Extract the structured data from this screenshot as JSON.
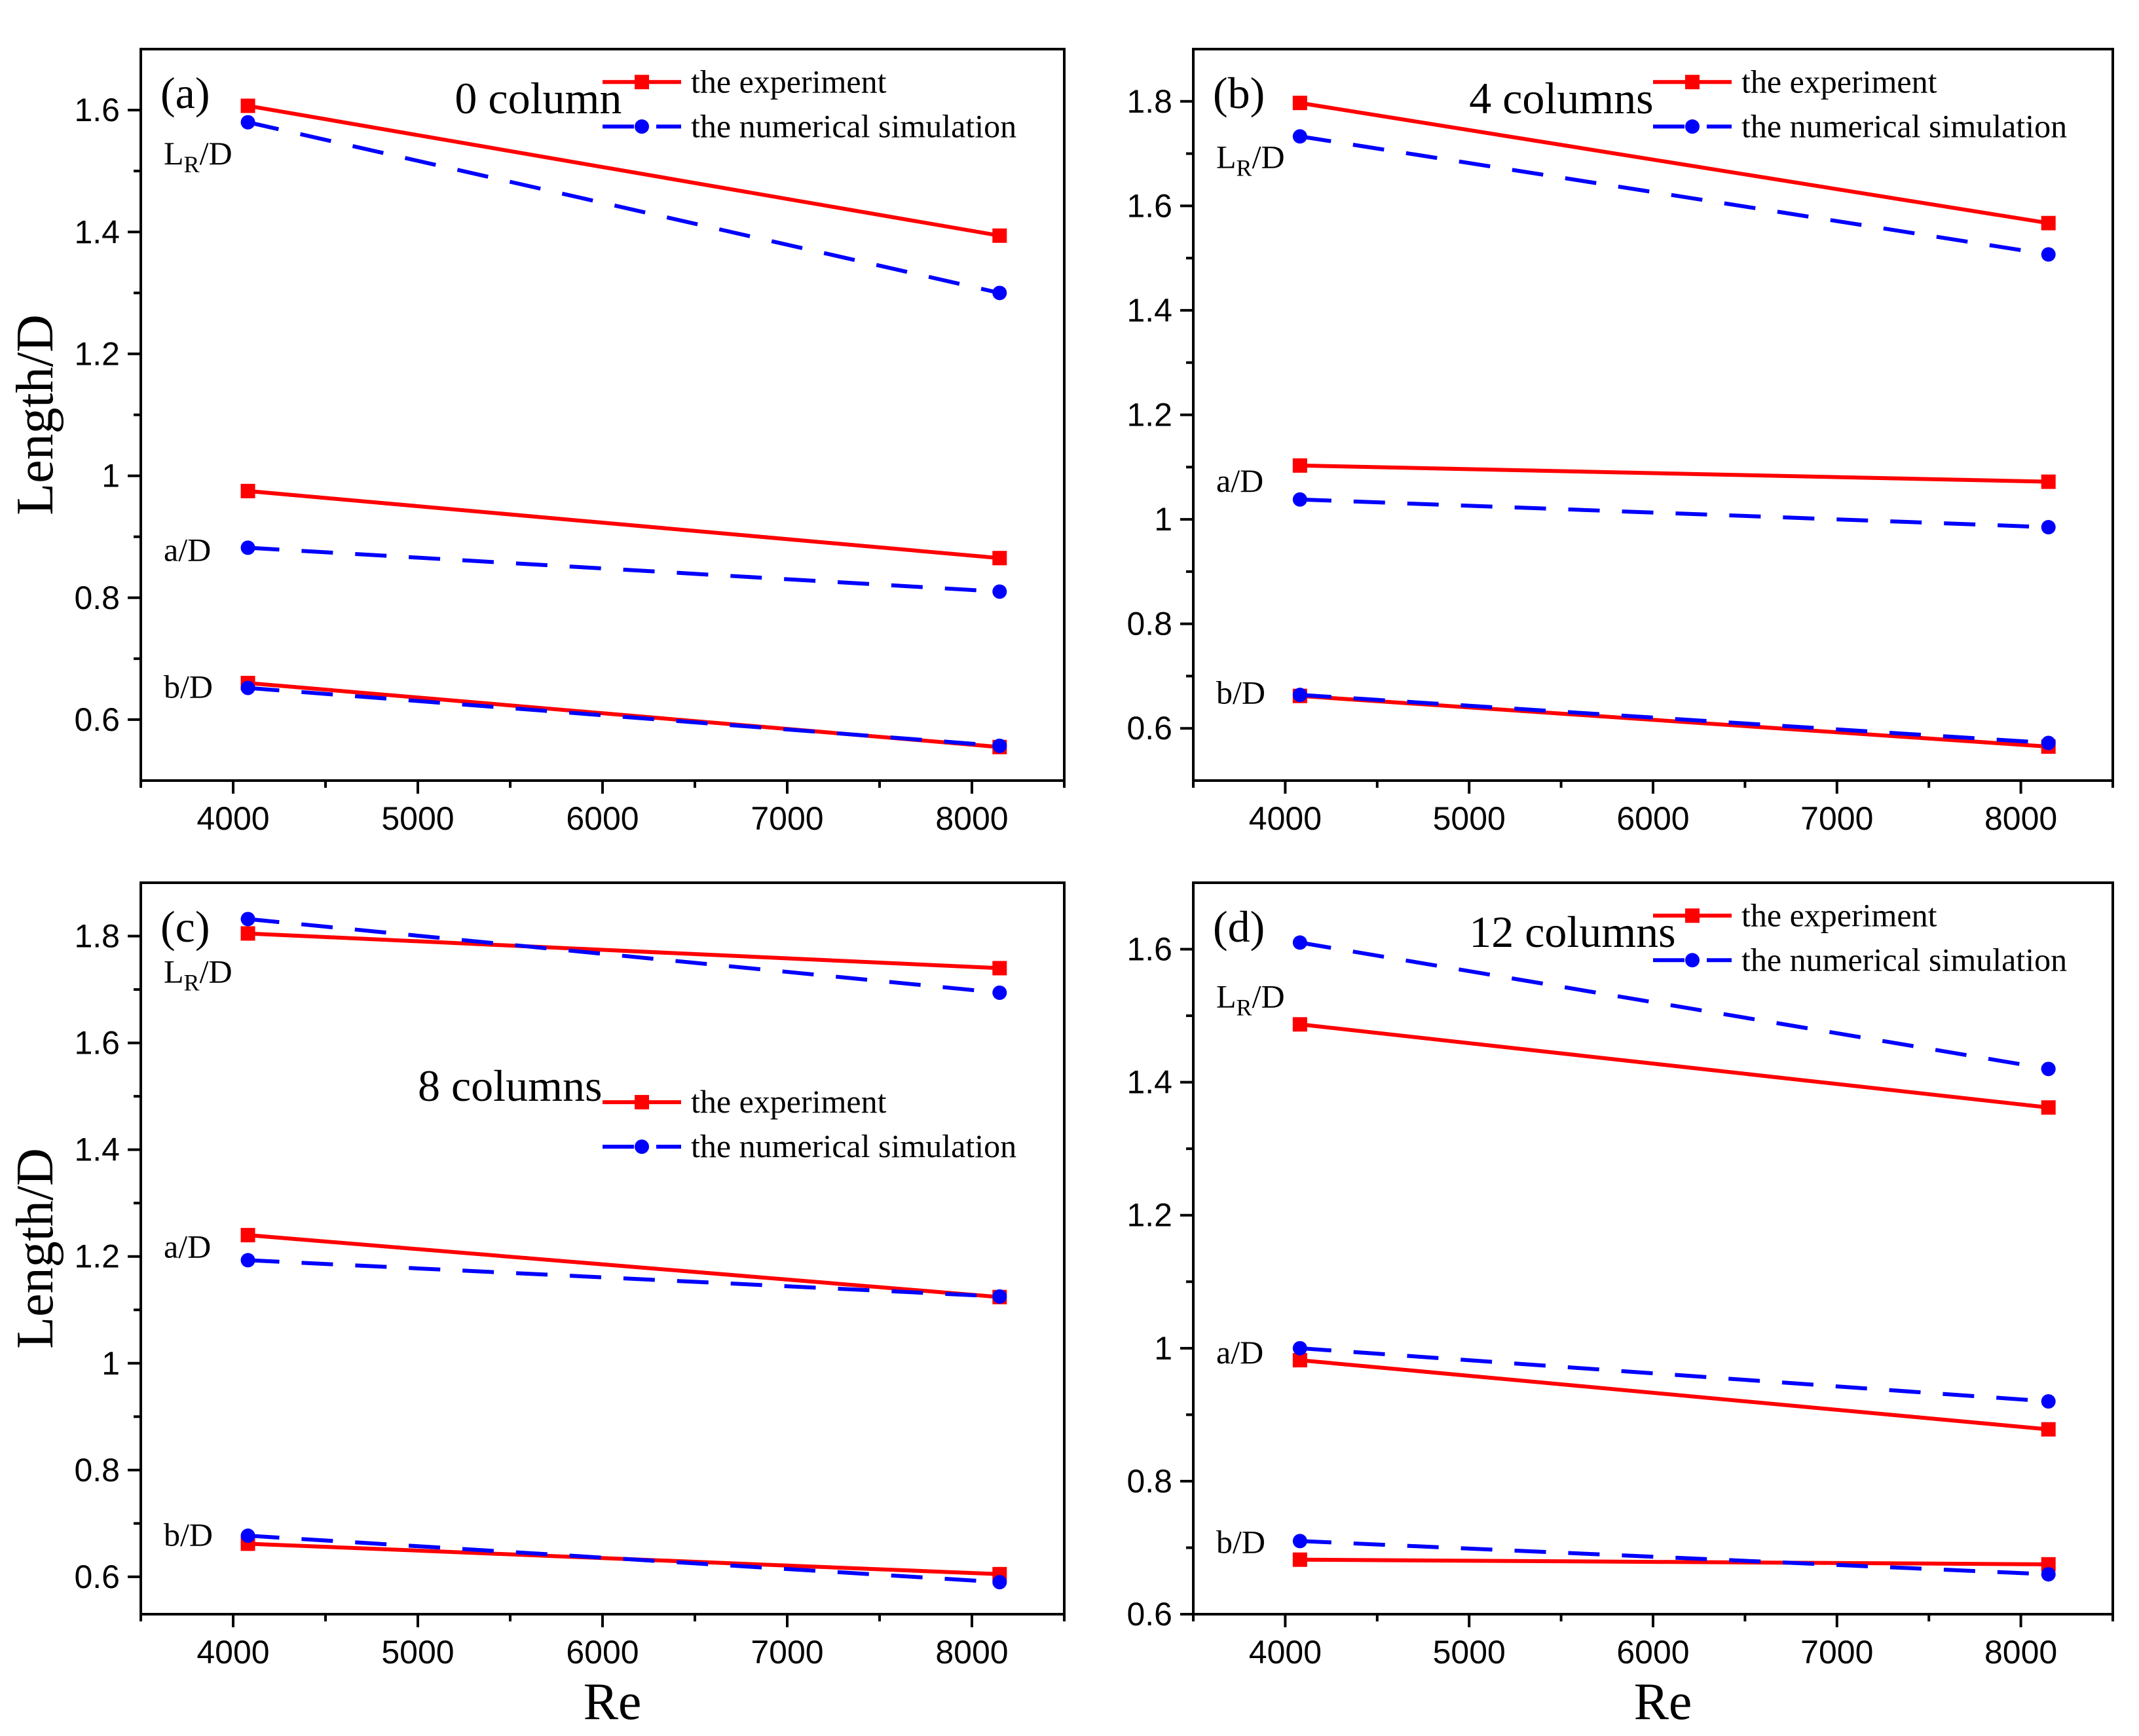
{
  "chart_data": [
    {
      "type": "line",
      "panel_label": "(a)",
      "title": "0 column",
      "xlabel": "Re",
      "ylabel": "Length/D",
      "xlim": [
        3500,
        8500
      ],
      "ylim": [
        0.5,
        1.7
      ],
      "xticks": [
        4000,
        5000,
        6000,
        7000,
        8000
      ],
      "yticks": [
        0.6,
        0.8,
        1,
        1.2,
        1.4,
        1.6
      ],
      "ytick_labels": [
        "0.6",
        "0.8",
        "1",
        "1.2",
        "1.4",
        "1.6"
      ],
      "x": [
        4080,
        8150
      ],
      "legend": [
        "the experiment",
        "the numerical simulation"
      ],
      "legend_pos": "top-right",
      "series": [
        {
          "name": "the experiment",
          "group": "LR/D",
          "values": [
            1.607,
            1.394
          ]
        },
        {
          "name": "the numerical simulation",
          "group": "LR/D",
          "values": [
            1.58,
            1.3
          ]
        },
        {
          "name": "the experiment",
          "group": "a/D",
          "values": [
            0.975,
            0.865
          ]
        },
        {
          "name": "the numerical simulation",
          "group": "a/D",
          "values": [
            0.882,
            0.81
          ]
        },
        {
          "name": "the experiment",
          "group": "b/D",
          "values": [
            0.66,
            0.555
          ]
        },
        {
          "name": "the numerical simulation",
          "group": "b/D",
          "values": [
            0.652,
            0.557
          ]
        }
      ],
      "annotations": [
        {
          "label": "L",
          "sub": "R",
          "rest": "/D",
          "y": 1.53
        },
        {
          "label": "a/D",
          "sub": "",
          "rest": "",
          "y": 0.88
        },
        {
          "label": "b/D",
          "sub": "",
          "rest": "",
          "y": 0.655
        }
      ]
    },
    {
      "type": "line",
      "panel_label": "(b)",
      "title": "4 columns",
      "xlabel": "Re",
      "ylabel": "Length/D",
      "xlim": [
        3500,
        8500
      ],
      "ylim": [
        0.5,
        1.9
      ],
      "xticks": [
        4000,
        5000,
        6000,
        7000,
        8000
      ],
      "yticks": [
        0.6,
        0.8,
        1,
        1.2,
        1.4,
        1.6,
        1.8
      ],
      "ytick_labels": [
        "0.6",
        "0.8",
        "1",
        "1.2",
        "1.4",
        "1.6",
        "1.8"
      ],
      "x": [
        4080,
        8150
      ],
      "legend": [
        "the experiment",
        "the numerical simulation"
      ],
      "legend_pos": "top-right",
      "series": [
        {
          "name": "the experiment",
          "group": "LR/D",
          "values": [
            1.797,
            1.567
          ]
        },
        {
          "name": "the numerical simulation",
          "group": "LR/D",
          "values": [
            1.733,
            1.507
          ]
        },
        {
          "name": "the experiment",
          "group": "a/D",
          "values": [
            1.103,
            1.072
          ]
        },
        {
          "name": "the numerical simulation",
          "group": "a/D",
          "values": [
            1.038,
            0.985
          ]
        },
        {
          "name": "the experiment",
          "group": "b/D",
          "values": [
            0.662,
            0.565
          ]
        },
        {
          "name": "the numerical simulation",
          "group": "b/D",
          "values": [
            0.664,
            0.572
          ]
        }
      ],
      "annotations": [
        {
          "label": "L",
          "sub": "R",
          "rest": "/D",
          "y": 1.695
        },
        {
          "label": "a/D",
          "sub": "",
          "rest": "",
          "y": 1.075
        },
        {
          "label": "b/D",
          "sub": "",
          "rest": "",
          "y": 0.67
        }
      ]
    },
    {
      "type": "line",
      "panel_label": "(c)",
      "title": "8 columns",
      "xlabel": "Re",
      "ylabel": "Length/D",
      "xlim": [
        3500,
        8500
      ],
      "ylim": [
        0.53,
        1.9
      ],
      "xticks": [
        4000,
        5000,
        6000,
        7000,
        8000
      ],
      "yticks": [
        0.6,
        0.8,
        1,
        1.2,
        1.4,
        1.6,
        1.8
      ],
      "ytick_labels": [
        "0.6",
        "0.8",
        "1",
        "1.2",
        "1.4",
        "1.6",
        "1.8"
      ],
      "x": [
        4080,
        8150
      ],
      "legend": [
        "the experiment",
        "the numerical simulation"
      ],
      "legend_pos": "center-right",
      "series": [
        {
          "name": "the experiment",
          "group": "LR/D",
          "values": [
            1.805,
            1.74
          ]
        },
        {
          "name": "the numerical simulation",
          "group": "LR/D",
          "values": [
            1.832,
            1.694
          ]
        },
        {
          "name": "the experiment",
          "group": "a/D",
          "values": [
            1.24,
            1.124
          ]
        },
        {
          "name": "the numerical simulation",
          "group": "a/D",
          "values": [
            1.193,
            1.125
          ]
        },
        {
          "name": "the experiment",
          "group": "b/D",
          "values": [
            0.662,
            0.605
          ]
        },
        {
          "name": "the numerical simulation",
          "group": "b/D",
          "values": [
            0.677,
            0.59
          ]
        }
      ],
      "annotations": [
        {
          "label": "L",
          "sub": "R",
          "rest": "/D",
          "y": 1.735
        },
        {
          "label": "a/D",
          "sub": "",
          "rest": "",
          "y": 1.22
        },
        {
          "label": "b/D",
          "sub": "",
          "rest": "",
          "y": 0.68
        }
      ]
    },
    {
      "type": "line",
      "panel_label": "(d)",
      "title": "12 columns",
      "xlabel": "Re",
      "ylabel": "Length/D",
      "xlim": [
        3500,
        8500
      ],
      "ylim": [
        0.6,
        1.7
      ],
      "xticks": [
        4000,
        5000,
        6000,
        7000,
        8000
      ],
      "yticks": [
        0.6,
        0.8,
        1,
        1.2,
        1.4,
        1.6
      ],
      "ytick_labels": [
        "0.6",
        "0.8",
        "1",
        "1.2",
        "1.4",
        "1.6"
      ],
      "x": [
        4080,
        8150
      ],
      "legend": [
        "the experiment",
        "the numerical simulation"
      ],
      "legend_pos": "top-right",
      "series": [
        {
          "name": "the experiment",
          "group": "LR/D",
          "values": [
            1.487,
            1.362
          ]
        },
        {
          "name": "the numerical simulation",
          "group": "LR/D",
          "values": [
            1.61,
            1.42
          ]
        },
        {
          "name": "the experiment",
          "group": "a/D",
          "values": [
            0.982,
            0.878
          ]
        },
        {
          "name": "the numerical simulation",
          "group": "a/D",
          "values": [
            1.0,
            0.92
          ]
        },
        {
          "name": "the experiment",
          "group": "b/D",
          "values": [
            0.682,
            0.675
          ]
        },
        {
          "name": "the numerical simulation",
          "group": "b/D",
          "values": [
            0.71,
            0.66
          ]
        }
      ],
      "annotations": [
        {
          "label": "L",
          "sub": "R",
          "rest": "/D",
          "y": 1.53
        },
        {
          "label": "a/D",
          "sub": "",
          "rest": "",
          "y": 0.995
        },
        {
          "label": "b/D",
          "sub": "",
          "rest": "",
          "y": 0.71
        }
      ]
    }
  ]
}
